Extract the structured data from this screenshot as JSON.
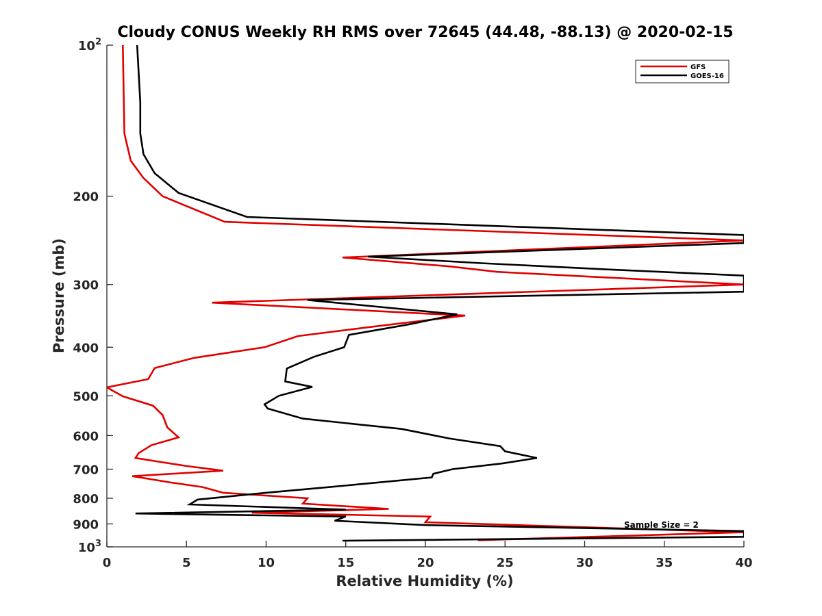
{
  "chart_data": {
    "type": "line",
    "title": "Cloudy CONUS Weekly RH RMS over 72645 (44.48, -88.13) @ 2020-02-15",
    "xlabel": "Relative Humidity (%)",
    "ylabel": "Pressure (mb)",
    "xlim": [
      0,
      40
    ],
    "ylim": [
      100,
      1000
    ],
    "yscale": "log",
    "y_reversed": true,
    "grid": false,
    "legend_position": "top-right",
    "x_ticks": [
      "0",
      "5",
      "10",
      "15",
      "20",
      "25",
      "30",
      "35",
      "40"
    ],
    "y_ticks": [
      {
        "value": 200,
        "label": "200"
      },
      {
        "value": 300,
        "label": "300"
      },
      {
        "value": 400,
        "label": "400"
      },
      {
        "value": 500,
        "label": "500"
      },
      {
        "value": 600,
        "label": "600"
      },
      {
        "value": 700,
        "label": "700"
      },
      {
        "value": 800,
        "label": "800"
      },
      {
        "value": 900,
        "label": "900"
      }
    ],
    "y_power_ticks": [
      {
        "value": 100,
        "base": "10",
        "exp": "2"
      },
      {
        "value": 1000,
        "base": "10",
        "exp": "3"
      }
    ],
    "annotation": "Sample Size = 2",
    "series": [
      {
        "name": "GFS",
        "color": "#e00000",
        "points": [
          [
            1.0,
            100
          ],
          [
            1.1,
            150
          ],
          [
            1.5,
            170
          ],
          [
            2.3,
            184
          ],
          [
            3.5,
            200
          ],
          [
            7.4,
            225
          ],
          [
            40,
            245
          ],
          [
            14.8,
            265
          ],
          [
            21.5,
            276
          ],
          [
            24.5,
            283
          ],
          [
            40,
            300
          ],
          [
            6.6,
            326
          ],
          [
            22.5,
            346
          ],
          [
            17.0,
            363
          ],
          [
            12.0,
            380
          ],
          [
            9.9,
            400
          ],
          [
            5.5,
            420
          ],
          [
            3.0,
            440
          ],
          [
            2.6,
            463
          ],
          [
            0,
            481
          ],
          [
            1.0,
            501
          ],
          [
            2.9,
            523
          ],
          [
            3.5,
            546
          ],
          [
            3.8,
            578
          ],
          [
            4.5,
            605
          ],
          [
            2.8,
            627
          ],
          [
            2.0,
            650
          ],
          [
            1.8,
            665
          ],
          [
            5.0,
            690
          ],
          [
            7.3,
            705
          ],
          [
            1.6,
            723
          ],
          [
            4.0,
            744
          ],
          [
            6.0,
            760
          ],
          [
            7.3,
            780
          ],
          [
            12.6,
            800
          ],
          [
            12.3,
            820
          ],
          [
            17.7,
            840
          ],
          [
            9.1,
            855
          ],
          [
            20.3,
            870
          ],
          [
            20.0,
            893
          ],
          [
            40,
            935
          ],
          [
            23.3,
            970
          ]
        ]
      },
      {
        "name": "GOES-16",
        "color": "#000000",
        "points": [
          [
            1.9,
            100
          ],
          [
            2.1,
            130
          ],
          [
            2.1,
            150
          ],
          [
            2.3,
            165
          ],
          [
            3.0,
            180
          ],
          [
            4.5,
            197
          ],
          [
            8.8,
            220
          ],
          [
            40,
            239
          ],
          [
            40,
            248
          ],
          [
            16.4,
            264
          ],
          [
            23.5,
            272
          ],
          [
            31.6,
            280
          ],
          [
            40,
            288
          ],
          [
            40,
            310
          ],
          [
            12.6,
            322
          ],
          [
            22.0,
            344
          ],
          [
            19.0,
            360
          ],
          [
            15.2,
            378
          ],
          [
            14.9,
            400
          ],
          [
            13.0,
            418
          ],
          [
            11.3,
            441
          ],
          [
            11.2,
            468
          ],
          [
            12.9,
            480
          ],
          [
            10.8,
            500
          ],
          [
            9.9,
            520
          ],
          [
            10.1,
            530
          ],
          [
            12.3,
            555
          ],
          [
            18.5,
            582
          ],
          [
            21.5,
            608
          ],
          [
            24.7,
            630
          ],
          [
            25.0,
            645
          ],
          [
            27.0,
            665
          ],
          [
            24.8,
            682
          ],
          [
            21.7,
            700
          ],
          [
            20.5,
            715
          ],
          [
            20.4,
            727
          ],
          [
            14.0,
            760
          ],
          [
            10.0,
            780
          ],
          [
            5.7,
            805
          ],
          [
            5.2,
            823
          ],
          [
            15.0,
            843
          ],
          [
            1.8,
            858
          ],
          [
            15.0,
            870
          ],
          [
            14.3,
            887
          ],
          [
            20.0,
            905
          ],
          [
            40,
            930
          ],
          [
            40,
            955
          ],
          [
            14.8,
            972
          ]
        ]
      }
    ]
  }
}
